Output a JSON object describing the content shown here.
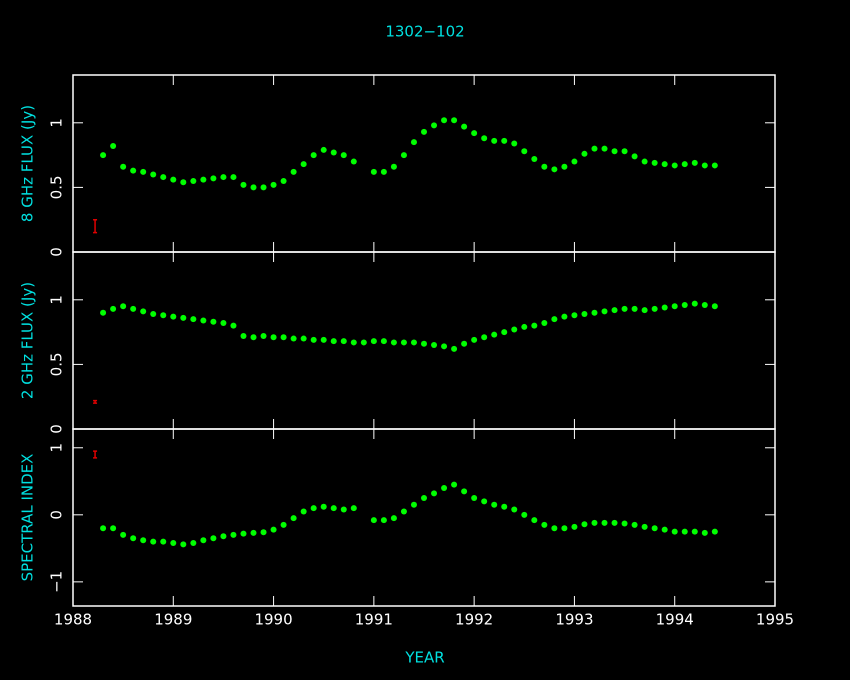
{
  "chart_data": [
    {
      "type": "scatter",
      "title": "1302−102",
      "ylabel": "8 GHz FLUX (Jy)",
      "x": [
        1988.3,
        1988.4,
        1988.5,
        1988.6,
        1988.7,
        1988.8,
        1988.9,
        1989.0,
        1989.1,
        1989.2,
        1989.3,
        1989.4,
        1989.5,
        1989.6,
        1989.7,
        1989.8,
        1989.9,
        1990.0,
        1990.1,
        1990.2,
        1990.3,
        1990.4,
        1990.5,
        1990.6,
        1990.7,
        1990.8,
        1990.9,
        1991.0,
        1991.1,
        1991.2,
        1991.3,
        1991.4,
        1991.5,
        1991.6,
        1991.7,
        1991.8,
        1991.9,
        1992.0,
        1992.1,
        1992.2,
        1992.3,
        1992.4,
        1992.5,
        1992.6,
        1992.7,
        1992.8,
        1992.9,
        1993.0,
        1993.1,
        1993.2,
        1993.3,
        1993.4,
        1993.5,
        1993.6,
        1993.7,
        1993.8,
        1993.9,
        1994.0,
        1994.1,
        1994.2,
        1994.3,
        1994.4
      ],
      "values": [
        0.75,
        0.82,
        0.66,
        0.63,
        0.62,
        0.6,
        0.58,
        0.56,
        0.54,
        0.55,
        0.56,
        0.57,
        0.58,
        0.58,
        0.52,
        0.5,
        0.5,
        0.52,
        0.55,
        0.62,
        0.68,
        0.75,
        0.79,
        0.77,
        0.75,
        0.7,
        null,
        0.62,
        0.62,
        0.66,
        0.75,
        0.85,
        0.93,
        0.98,
        1.02,
        1.02,
        0.97,
        0.92,
        0.88,
        0.86,
        0.86,
        0.84,
        0.78,
        0.72,
        0.66,
        0.64,
        0.66,
        0.7,
        0.76,
        0.8,
        0.8,
        0.78,
        0.78,
        0.74,
        0.7,
        0.69,
        0.68,
        0.67,
        0.68,
        0.69,
        0.67,
        0.67
      ],
      "color": "#00ff00",
      "error_bar": {
        "x": 1988.22,
        "value": 0.2,
        "error": 0.05,
        "color": "#e00000"
      },
      "xlim": [
        1988,
        1995
      ],
      "xticks": [
        1988,
        1989,
        1990,
        1991,
        1992,
        1993,
        1994,
        1995
      ],
      "ylim": [
        0,
        1.37
      ],
      "yticks": [
        0,
        0.5,
        1
      ]
    },
    {
      "type": "scatter",
      "ylabel": "2 GHz FLUX (Jy)",
      "x": [
        1988.3,
        1988.4,
        1988.5,
        1988.6,
        1988.7,
        1988.8,
        1988.9,
        1989.0,
        1989.1,
        1989.2,
        1989.3,
        1989.4,
        1989.5,
        1989.6,
        1989.7,
        1989.8,
        1989.9,
        1990.0,
        1990.1,
        1990.2,
        1990.3,
        1990.4,
        1990.5,
        1990.6,
        1990.7,
        1990.8,
        1990.9,
        1991.0,
        1991.1,
        1991.2,
        1991.3,
        1991.4,
        1991.5,
        1991.6,
        1991.7,
        1991.8,
        1991.9,
        1992.0,
        1992.1,
        1992.2,
        1992.3,
        1992.4,
        1992.5,
        1992.6,
        1992.7,
        1992.8,
        1992.9,
        1993.0,
        1993.1,
        1993.2,
        1993.3,
        1993.4,
        1993.5,
        1993.6,
        1993.7,
        1993.8,
        1993.9,
        1994.0,
        1994.1,
        1994.2,
        1994.3,
        1994.4
      ],
      "values": [
        0.9,
        0.93,
        0.95,
        0.93,
        0.91,
        0.89,
        0.88,
        0.87,
        0.86,
        0.85,
        0.84,
        0.83,
        0.82,
        0.8,
        0.72,
        0.71,
        0.72,
        0.71,
        0.71,
        0.7,
        0.7,
        0.69,
        0.69,
        0.68,
        0.68,
        0.67,
        0.67,
        0.68,
        0.68,
        0.67,
        0.67,
        0.67,
        0.66,
        0.65,
        0.64,
        0.62,
        0.66,
        0.69,
        0.71,
        0.73,
        0.75,
        0.77,
        0.79,
        0.8,
        0.82,
        0.85,
        0.87,
        0.88,
        0.89,
        0.9,
        0.91,
        0.92,
        0.93,
        0.93,
        0.92,
        0.93,
        0.94,
        0.95,
        0.96,
        0.97,
        0.96,
        0.95
      ],
      "color": "#00ff00",
      "error_bar": {
        "x": 1988.22,
        "value": 0.21,
        "error": 0.01,
        "color": "#e00000"
      },
      "xlim": [
        1988,
        1995
      ],
      "xticks": [
        1988,
        1989,
        1990,
        1991,
        1992,
        1993,
        1994,
        1995
      ],
      "ylim": [
        0,
        1.37
      ],
      "yticks": [
        0,
        0.5,
        1
      ]
    },
    {
      "type": "scatter",
      "ylabel": "SPECTRAL INDEX",
      "xlabel": "YEAR",
      "x": [
        1988.3,
        1988.4,
        1988.5,
        1988.6,
        1988.7,
        1988.8,
        1988.9,
        1989.0,
        1989.1,
        1989.2,
        1989.3,
        1989.4,
        1989.5,
        1989.6,
        1989.7,
        1989.8,
        1989.9,
        1990.0,
        1990.1,
        1990.2,
        1990.3,
        1990.4,
        1990.5,
        1990.6,
        1990.7,
        1990.8,
        1990.9,
        1991.0,
        1991.1,
        1991.2,
        1991.3,
        1991.4,
        1991.5,
        1991.6,
        1991.7,
        1991.8,
        1991.9,
        1992.0,
        1992.1,
        1992.2,
        1992.3,
        1992.4,
        1992.5,
        1992.6,
        1992.7,
        1992.8,
        1992.9,
        1993.0,
        1993.1,
        1993.2,
        1993.3,
        1993.4,
        1993.5,
        1993.6,
        1993.7,
        1993.8,
        1993.9,
        1994.0,
        1994.1,
        1994.2,
        1994.3,
        1994.4
      ],
      "values": [
        -0.2,
        -0.2,
        -0.3,
        -0.35,
        -0.38,
        -0.4,
        -0.4,
        -0.42,
        -0.44,
        -0.42,
        -0.38,
        -0.35,
        -0.32,
        -0.3,
        -0.28,
        -0.27,
        -0.26,
        -0.22,
        -0.15,
        -0.05,
        0.05,
        0.1,
        0.12,
        0.1,
        0.08,
        0.1,
        null,
        -0.08,
        -0.08,
        -0.05,
        0.05,
        0.15,
        0.25,
        0.32,
        0.4,
        0.45,
        0.35,
        0.25,
        0.2,
        0.15,
        0.12,
        0.08,
        0.0,
        -0.08,
        -0.15,
        -0.2,
        -0.2,
        -0.18,
        -0.14,
        -0.12,
        -0.12,
        -0.12,
        -0.13,
        -0.15,
        -0.18,
        -0.2,
        -0.22,
        -0.25,
        -0.25,
        -0.25,
        -0.27,
        -0.25
      ],
      "color": "#00ff00",
      "error_bar": {
        "x": 1988.22,
        "value": 0.9,
        "error": 0.05,
        "color": "#e00000"
      },
      "xlim": [
        1988,
        1995
      ],
      "xticks": [
        1988,
        1989,
        1990,
        1991,
        1992,
        1993,
        1994,
        1995
      ],
      "ylim": [
        -1.36,
        1.28
      ],
      "yticks": [
        {
          "value": -1,
          "label": "−1"
        },
        0,
        1
      ]
    }
  ]
}
